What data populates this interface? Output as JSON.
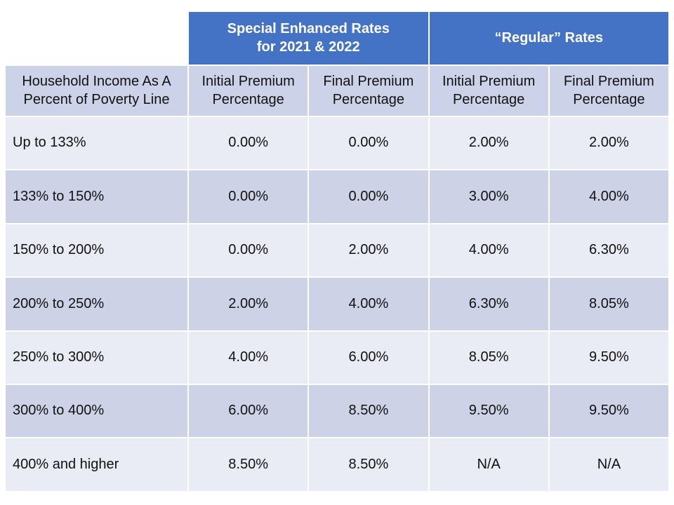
{
  "colors": {
    "page_bg": "#FFFFFF",
    "header_blue": "#4472C4",
    "header_text": "#FFFFFF",
    "subheader_bg": "#CCD3E8",
    "row_light_bg": "#E9EBF5",
    "row_dark_bg": "#CDD2E6",
    "body_text": "#111111"
  },
  "header": {
    "special_line1": "Special Enhanced Rates",
    "special_line2": "for 2021 & 2022",
    "regular": "“Regular” Rates"
  },
  "subheaders": {
    "row_header_line1": "Household Income As A",
    "row_header_line2": "Percent of Poverty Line",
    "cols": [
      {
        "line1": "Initial Premium",
        "line2": "Percentage"
      },
      {
        "line1": "Final Premium",
        "line2": "Percentage"
      },
      {
        "line1": "Initial Premium",
        "line2": "Percentage"
      },
      {
        "line1": "Final Premium",
        "line2": "Percentage"
      }
    ]
  },
  "rows": [
    {
      "label": "Up to 133%",
      "values": [
        "0.00%",
        "0.00%",
        "2.00%",
        "2.00%"
      ]
    },
    {
      "label": "133% to 150%",
      "values": [
        "0.00%",
        "0.00%",
        "3.00%",
        "4.00%"
      ]
    },
    {
      "label": "150% to 200%",
      "values": [
        "0.00%",
        "2.00%",
        "4.00%",
        "6.30%"
      ]
    },
    {
      "label": "200% to 250%",
      "values": [
        "2.00%",
        "4.00%",
        "6.30%",
        "8.05%"
      ]
    },
    {
      "label": "250% to 300%",
      "values": [
        "4.00%",
        "6.00%",
        "8.05%",
        "9.50%"
      ]
    },
    {
      "label": "300% to 400%",
      "values": [
        "6.00%",
        "8.50%",
        "9.50%",
        "9.50%"
      ]
    },
    {
      "label": "400% and higher",
      "values": [
        "8.50%",
        "8.50%",
        "N/A",
        "N/A"
      ]
    }
  ],
  "chart_data": {
    "type": "table",
    "title": "Premium percentages: Special Enhanced Rates for 2021 & 2022 vs Regular Rates",
    "column_groups": [
      {
        "label": "Special Enhanced Rates for 2021 & 2022",
        "spans": [
          "Initial Premium Percentage",
          "Final Premium Percentage"
        ]
      },
      {
        "label": "“Regular” Rates",
        "spans": [
          "Initial Premium Percentage",
          "Final Premium Percentage"
        ]
      }
    ],
    "row_header": "Household Income As A Percent of Poverty Line",
    "columns": [
      "Initial Premium Percentage (Special Enhanced)",
      "Final Premium Percentage (Special Enhanced)",
      "Initial Premium Percentage (Regular)",
      "Final Premium Percentage (Regular)"
    ],
    "categories": [
      "Up to 133%",
      "133% to 150%",
      "150% to 200%",
      "200% to 250%",
      "250% to 300%",
      "300% to 400%",
      "400% and higher"
    ],
    "values": [
      [
        "0.00%",
        "0.00%",
        "2.00%",
        "2.00%"
      ],
      [
        "0.00%",
        "0.00%",
        "3.00%",
        "4.00%"
      ],
      [
        "0.00%",
        "2.00%",
        "4.00%",
        "6.30%"
      ],
      [
        "2.00%",
        "4.00%",
        "6.30%",
        "8.05%"
      ],
      [
        "4.00%",
        "6.00%",
        "8.05%",
        "9.50%"
      ],
      [
        "6.00%",
        "8.50%",
        "9.50%",
        "9.50%"
      ],
      [
        "8.50%",
        "8.50%",
        "N/A",
        "N/A"
      ]
    ]
  }
}
